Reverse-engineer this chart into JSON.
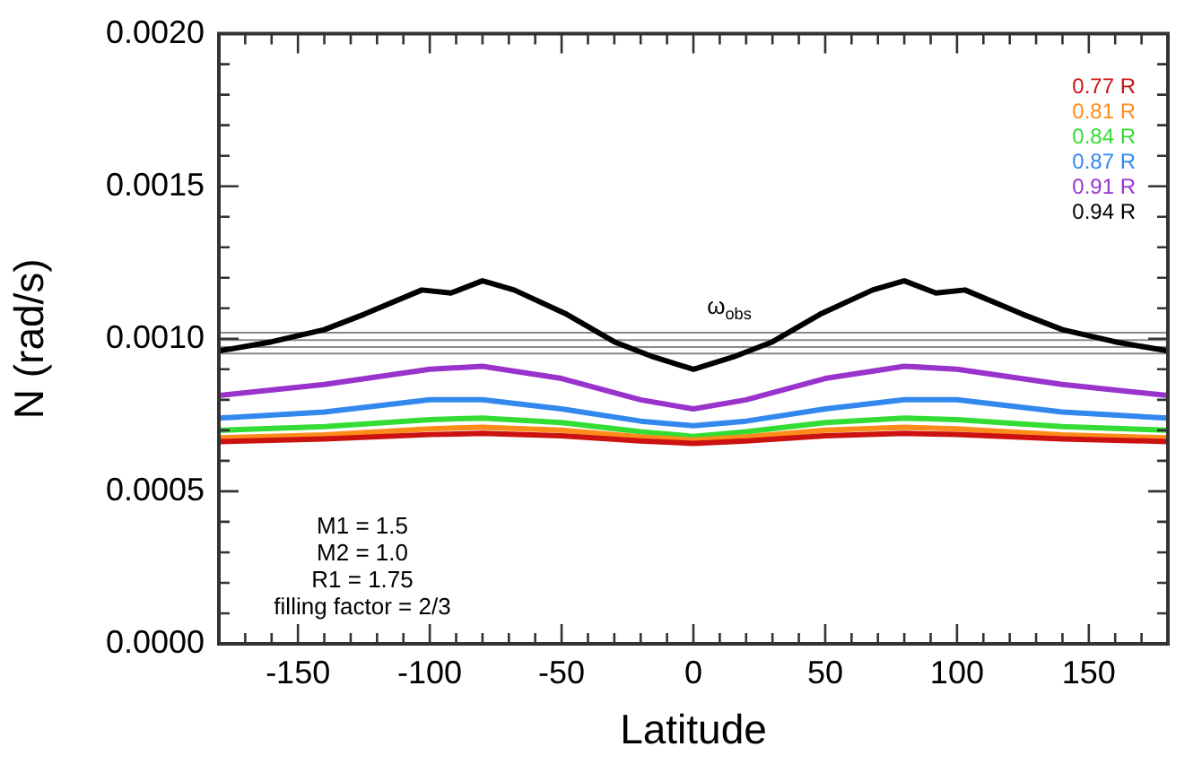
{
  "chart_data": {
    "type": "line",
    "xlabel": "Latitude",
    "ylabel": "N (rad/s)",
    "xlim": [
      -180,
      180
    ],
    "ylim": [
      0,
      0.002
    ],
    "xticks": [
      {
        "value": -180,
        "label": null
      },
      {
        "value": -170,
        "label": null
      },
      {
        "value": -160,
        "label": null
      },
      -150,
      {
        "value": -140,
        "label": null
      },
      {
        "value": -130,
        "label": null
      },
      {
        "value": -120,
        "label": null
      },
      {
        "value": -110,
        "label": null
      },
      -100,
      {
        "value": -90,
        "label": null
      },
      {
        "value": -80,
        "label": null
      },
      {
        "value": -70,
        "label": null
      },
      {
        "value": -60,
        "label": null
      },
      -50,
      {
        "value": -40,
        "label": null
      },
      {
        "value": -30,
        "label": null
      },
      {
        "value": -20,
        "label": null
      },
      {
        "value": -10,
        "label": null
      },
      0,
      {
        "value": 10,
        "label": null
      },
      {
        "value": 20,
        "label": null
      },
      {
        "value": 30,
        "label": null
      },
      {
        "value": 40,
        "label": null
      },
      50,
      {
        "value": 60,
        "label": null
      },
      {
        "value": 70,
        "label": null
      },
      {
        "value": 80,
        "label": null
      },
      {
        "value": 90,
        "label": null
      },
      100,
      {
        "value": 110,
        "label": null
      },
      {
        "value": 120,
        "label": null
      },
      {
        "value": 130,
        "label": null
      },
      {
        "value": 140,
        "label": null
      },
      150,
      {
        "value": 160,
        "label": null
      },
      {
        "value": 170,
        "label": null
      },
      {
        "value": 180,
        "label": null
      }
    ],
    "yticks": [
      {
        "value": 0,
        "label": "0.0000"
      },
      {
        "value": 0.0001,
        "label": null
      },
      {
        "value": 0.0002,
        "label": null
      },
      {
        "value": 0.0003,
        "label": null
      },
      {
        "value": 0.0004,
        "label": null
      },
      {
        "value": 0.0005,
        "label": "0.0005"
      },
      {
        "value": 0.0006,
        "label": null
      },
      {
        "value": 0.0007,
        "label": null
      },
      {
        "value": 0.0008,
        "label": null
      },
      {
        "value": 0.0009,
        "label": null
      },
      {
        "value": 0.001,
        "label": "0.0010"
      },
      {
        "value": 0.0011,
        "label": null
      },
      {
        "value": 0.0012,
        "label": null
      },
      {
        "value": 0.0013,
        "label": null
      },
      {
        "value": 0.0014,
        "label": null
      },
      {
        "value": 0.0015,
        "label": "0.0015"
      },
      {
        "value": 0.0016,
        "label": null
      },
      {
        "value": 0.0017,
        "label": null
      },
      {
        "value": 0.0018,
        "label": null
      },
      {
        "value": 0.0019,
        "label": null
      },
      {
        "value": 0.002,
        "label": "0.0020"
      }
    ],
    "x": [
      -180,
      -140,
      -100,
      -80,
      -50,
      -20,
      0,
      20,
      50,
      80,
      100,
      140,
      180
    ],
    "series": [
      {
        "name": "0.77 R",
        "color": "#cc1111",
        "values": [
          0.000663,
          0.000672,
          0.000686,
          0.00069,
          0.000682,
          0.000665,
          0.000657,
          0.000665,
          0.000682,
          0.00069,
          0.000686,
          0.000672,
          0.000663
        ]
      },
      {
        "name": "0.81 R",
        "color": "#ff8c1a",
        "values": [
          0.000675,
          0.000685,
          0.000705,
          0.00071,
          0.0007,
          0.000678,
          0.000668,
          0.000678,
          0.0007,
          0.00071,
          0.000705,
          0.000685,
          0.000675
        ]
      },
      {
        "name": "0.84 R",
        "color": "#33dd33",
        "values": [
          0.0007,
          0.000712,
          0.000735,
          0.00074,
          0.000725,
          0.000695,
          0.00068,
          0.000695,
          0.000725,
          0.00074,
          0.000735,
          0.000712,
          0.0007
        ]
      },
      {
        "name": "0.87 R",
        "color": "#3388ee",
        "values": [
          0.00074,
          0.00076,
          0.0008,
          0.0008,
          0.00077,
          0.00073,
          0.000715,
          0.00073,
          0.00077,
          0.0008,
          0.0008,
          0.00076,
          0.00074
        ]
      },
      {
        "name": "0.91 R",
        "color": "#9933cc",
        "values": [
          0.000814,
          0.00085,
          0.0009,
          0.00091,
          0.00087,
          0.0008,
          0.00077,
          0.0008,
          0.00087,
          0.00091,
          0.0009,
          0.00085,
          0.000814
        ]
      },
      {
        "name": "0.94 R",
        "color": "#000000",
        "x": [
          -180,
          -160,
          -140,
          -125,
          -103,
          -92,
          -80,
          -68,
          -48,
          -30,
          -15,
          0,
          15,
          30,
          48,
          68,
          80,
          92,
          103,
          125,
          140,
          160,
          180
        ],
        "values": [
          0.00096,
          0.00099,
          0.00103,
          0.00108,
          0.00116,
          0.00115,
          0.00119,
          0.00116,
          0.00108,
          0.00099,
          0.00094,
          0.0009,
          0.00094,
          0.00099,
          0.00108,
          0.00116,
          0.00119,
          0.00115,
          0.00116,
          0.00108,
          0.00103,
          0.00099,
          0.00096
        ]
      }
    ],
    "ref_lines": [
      {
        "axis": "y",
        "value": 0.00102,
        "color": "#888888"
      },
      {
        "axis": "y",
        "value": 0.000996,
        "color": "#888888"
      },
      {
        "axis": "y",
        "value": 0.000973,
        "color": "#888888"
      },
      {
        "axis": "y",
        "value": 0.000952,
        "color": "#888888"
      }
    ],
    "annotations": [
      "ω$_{obs}$",
      "M1 = 1.5",
      "M2 = 1.0",
      "R1 = 1.75",
      "filling factor = 2/3"
    ],
    "legend": "top right",
    "grid": false,
    "marker": "none",
    "line_style": "solid"
  }
}
